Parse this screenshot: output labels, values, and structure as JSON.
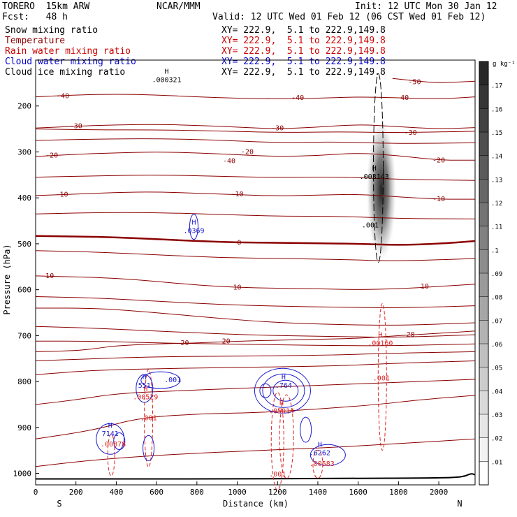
{
  "header": {
    "model": "TORERO  15km ARW",
    "center": "NCAR/MMM",
    "init": "Init: 12 UTC Mon 30 Jan 12",
    "fcst": "Fcst:   48 h",
    "valid": "Valid: 12 UTC Wed 01 Feb 12 (06 CST Wed 01 Feb 12)"
  },
  "legend": [
    {
      "label": "Snow mixing ratio",
      "xy": "XY= 222.9,  5.1 to 222.9,149.8",
      "color": "#000000"
    },
    {
      "label": "Temperature",
      "xy": "XY= 222.9,  5.1 to 222.9,149.8",
      "color": "#8b0000"
    },
    {
      "label": "Rain water mixing ratio",
      "xy": "XY= 222.9,  5.1 to 222.9,149.8",
      "color": "#cc0000"
    },
    {
      "label": "Cloud water mixing ratio",
      "xy": "XY= 222.9,  5.1 to 222.9,149.8",
      "color": "#0000cc"
    },
    {
      "label": "Cloud ice mixing ratio",
      "xy": "XY= 222.9,  5.1 to 222.9,149.8",
      "color": "#000000"
    }
  ],
  "colors": {
    "temperature": "#8b0000",
    "rain": "#dd2222",
    "cloudwater": "#1a1acc",
    "ice": "#000000",
    "ground": "#000000"
  },
  "chart_data": {
    "type": "cross-section",
    "xlabel": "Distance (km)",
    "ylabel": "Pressure (hPa)",
    "xlim": [
      0,
      2180
    ],
    "ylim": [
      1025,
      100
    ],
    "x_ticks": [
      0,
      200,
      400,
      600,
      800,
      1000,
      1200,
      1400,
      1600,
      1800,
      2000
    ],
    "y_ticks": [
      200,
      300,
      400,
      500,
      600,
      700,
      800,
      900,
      1000
    ],
    "endpoints": {
      "left": "S",
      "right": "N"
    },
    "colorbar": {
      "units": "g kg⁻¹",
      "ticks": [
        ".01",
        ".02",
        ".03",
        ".04",
        ".05",
        ".06",
        ".07",
        ".08",
        ".09",
        ".1",
        ".11",
        ".12",
        ".13",
        ".14",
        ".15",
        ".16",
        ".17"
      ]
    },
    "temperature_contours": [
      {
        "value": -50,
        "label": "-50",
        "points": [
          [
            1770,
            140
          ],
          [
            1900,
            146
          ],
          [
            2000,
            150
          ],
          [
            2180,
            146
          ]
        ],
        "label_at": [
          1880,
          148
        ]
      },
      {
        "value": -40,
        "label": "-40",
        "points": [
          [
            0,
            180
          ],
          [
            200,
            176
          ],
          [
            400,
            174
          ],
          [
            600,
            176
          ],
          [
            800,
            180
          ],
          [
            1000,
            183
          ],
          [
            1200,
            185
          ],
          [
            1400,
            183
          ],
          [
            1600,
            180
          ],
          [
            1800,
            182
          ],
          [
            2000,
            185
          ],
          [
            2180,
            180
          ]
        ],
        "label_at": [
          135,
          178
        ]
      },
      {
        "value": -30,
        "label": "-30",
        "points": [
          [
            0,
            248
          ],
          [
            200,
            244
          ],
          [
            400,
            241
          ],
          [
            600,
            240
          ],
          [
            800,
            242
          ],
          [
            1000,
            246
          ],
          [
            1200,
            250
          ],
          [
            1400,
            246
          ],
          [
            1600,
            240
          ],
          [
            1800,
            245
          ],
          [
            2000,
            250
          ],
          [
            2180,
            247
          ]
        ],
        "label_at": [
          200,
          244
        ]
      },
      {
        "value": -20,
        "label": "-20",
        "points": [
          [
            0,
            310
          ],
          [
            200,
            305
          ],
          [
            400,
            302
          ],
          [
            600,
            300
          ],
          [
            800,
            302
          ],
          [
            1000,
            306
          ],
          [
            1200,
            310
          ],
          [
            1400,
            308
          ],
          [
            1600,
            302
          ],
          [
            1800,
            308
          ],
          [
            2000,
            318
          ],
          [
            2180,
            318
          ]
        ],
        "label_at": [
          80,
          308
        ]
      },
      {
        "value": -10,
        "label": "-10",
        "points": [
          [
            0,
            395
          ],
          [
            200,
            392
          ],
          [
            400,
            388
          ],
          [
            600,
            387
          ],
          [
            800,
            390
          ],
          [
            1000,
            393
          ],
          [
            1200,
            396
          ],
          [
            1400,
            394
          ],
          [
            1600,
            392
          ],
          [
            1800,
            398
          ],
          [
            2000,
            403
          ],
          [
            2180,
            403
          ]
        ],
        "label_at": [
          130,
          393
        ]
      },
      {
        "value": 0,
        "label": "0",
        "points": [
          [
            0,
            483
          ],
          [
            200,
            484
          ],
          [
            400,
            486
          ],
          [
            600,
            490
          ],
          [
            800,
            494
          ],
          [
            1000,
            497
          ],
          [
            1200,
            498
          ],
          [
            1400,
            499
          ],
          [
            1600,
            500
          ],
          [
            1800,
            503
          ],
          [
            2000,
            500
          ],
          [
            2180,
            494
          ]
        ],
        "label_at": [
          1010,
          498
        ]
      },
      {
        "value": 10,
        "label": "10",
        "points": [
          [
            0,
            570
          ],
          [
            200,
            572
          ],
          [
            400,
            575
          ],
          [
            600,
            582
          ],
          [
            800,
            590
          ],
          [
            1000,
            595
          ],
          [
            1200,
            597
          ],
          [
            1400,
            598
          ],
          [
            1600,
            600
          ],
          [
            1800,
            598
          ],
          [
            2000,
            593
          ],
          [
            2180,
            588
          ]
        ],
        "label_at": [
          70,
          570
        ]
      },
      {
        "value": 20,
        "label": "20",
        "points": [
          [
            0,
            735
          ],
          [
            200,
            733
          ],
          [
            300,
            728
          ],
          [
            400,
            722
          ],
          [
            600,
            718
          ],
          [
            800,
            716
          ],
          [
            1000,
            712
          ],
          [
            1200,
            710
          ],
          [
            1400,
            708
          ],
          [
            1600,
            706
          ],
          [
            1800,
            700
          ],
          [
            2000,
            695
          ],
          [
            2180,
            690
          ]
        ],
        "label_at": [
          1860,
          698
        ]
      }
    ],
    "temperature_extra_lines": [
      {
        "points": [
          [
            0,
            250
          ],
          [
            300,
            252
          ],
          [
            600,
            252
          ],
          [
            900,
            254
          ],
          [
            1200,
            258
          ],
          [
            1500,
            256
          ],
          [
            1800,
            258
          ],
          [
            2180,
            255
          ]
        ]
      },
      {
        "points": [
          [
            0,
            275
          ],
          [
            300,
            272
          ],
          [
            600,
            271
          ],
          [
            900,
            274
          ],
          [
            1200,
            280
          ],
          [
            1500,
            278
          ],
          [
            1800,
            282
          ],
          [
            2180,
            280
          ]
        ]
      },
      {
        "points": [
          [
            0,
            355
          ],
          [
            300,
            352
          ],
          [
            600,
            350
          ],
          [
            900,
            353
          ],
          [
            1200,
            356
          ],
          [
            1500,
            354
          ],
          [
            1800,
            360
          ],
          [
            2180,
            362
          ]
        ]
      },
      {
        "points": [
          [
            0,
            435
          ],
          [
            300,
            432
          ],
          [
            600,
            432
          ],
          [
            900,
            436
          ],
          [
            1200,
            440
          ],
          [
            1500,
            440
          ],
          [
            1800,
            445
          ],
          [
            2180,
            446
          ]
        ]
      },
      {
        "points": [
          [
            0,
            515
          ],
          [
            300,
            518
          ],
          [
            600,
            524
          ],
          [
            900,
            530
          ],
          [
            1200,
            532
          ],
          [
            1500,
            534
          ],
          [
            1800,
            538
          ],
          [
            2180,
            532
          ]
        ]
      },
      {
        "points": [
          [
            0,
            615
          ],
          [
            300,
            618
          ],
          [
            600,
            625
          ],
          [
            900,
            632
          ],
          [
            1200,
            636
          ],
          [
            1500,
            638
          ],
          [
            1800,
            640
          ],
          [
            2180,
            635
          ]
        ]
      },
      {
        "points": [
          [
            0,
            640
          ],
          [
            300,
            640
          ],
          [
            600,
            650
          ],
          [
            900,
            662
          ],
          [
            1200,
            672
          ],
          [
            1500,
            676
          ],
          [
            1800,
            678
          ],
          [
            2180,
            672
          ]
        ]
      },
      {
        "points": [
          [
            0,
            680
          ],
          [
            300,
            684
          ],
          [
            600,
            690
          ],
          [
            900,
            696
          ],
          [
            1200,
            700
          ],
          [
            1500,
            702
          ],
          [
            1800,
            704
          ],
          [
            2180,
            698
          ]
        ]
      },
      {
        "points": [
          [
            0,
            712
          ],
          [
            300,
            712
          ],
          [
            600,
            716
          ],
          [
            900,
            718
          ],
          [
            1200,
            720
          ],
          [
            1500,
            722
          ],
          [
            1800,
            722
          ],
          [
            2180,
            718
          ]
        ]
      },
      {
        "points": [
          [
            0,
            755
          ],
          [
            300,
            750
          ],
          [
            600,
            746
          ],
          [
            900,
            745
          ],
          [
            1200,
            744
          ],
          [
            1500,
            742
          ],
          [
            1800,
            738
          ],
          [
            2180,
            735
          ]
        ]
      },
      {
        "points": [
          [
            0,
            785
          ],
          [
            300,
            775
          ],
          [
            600,
            772
          ],
          [
            900,
            770
          ],
          [
            1200,
            768
          ],
          [
            1500,
            766
          ],
          [
            1800,
            760
          ],
          [
            2180,
            755
          ]
        ]
      },
      {
        "points": [
          [
            0,
            850
          ],
          [
            200,
            840
          ],
          [
            400,
            826
          ],
          [
            700,
            820
          ],
          [
            1000,
            815
          ],
          [
            1300,
            810
          ],
          [
            1600,
            805
          ],
          [
            1900,
            800
          ],
          [
            2180,
            795
          ]
        ]
      },
      {
        "points": [
          [
            0,
            925
          ],
          [
            300,
            905
          ],
          [
            500,
            880
          ],
          [
            800,
            870
          ],
          [
            1100,
            868
          ],
          [
            1400,
            860
          ],
          [
            1700,
            850
          ],
          [
            1900,
            840
          ],
          [
            2180,
            830
          ]
        ]
      },
      {
        "points": [
          [
            0,
            985
          ],
          [
            300,
            970
          ],
          [
            700,
            958
          ],
          [
            1100,
            950
          ],
          [
            1400,
            945
          ],
          [
            1700,
            938
          ],
          [
            2180,
            925
          ]
        ]
      }
    ],
    "temperature_labels": [
      {
        "x": 960,
        "y": 320,
        "text": "-40"
      },
      {
        "x": 1300,
        "y": 182,
        "text": "-40"
      },
      {
        "x": 1820,
        "y": 182,
        "text": "-40"
      },
      {
        "x": 1860,
        "y": 258,
        "text": "-30"
      },
      {
        "x": 1200,
        "y": 248,
        "text": "-30"
      },
      {
        "x": 1050,
        "y": 300,
        "text": "-20"
      },
      {
        "x": 2000,
        "y": 318,
        "text": "-20"
      },
      {
        "x": 1000,
        "y": 392,
        "text": "-10"
      },
      {
        "x": 2000,
        "y": 403,
        "text": "-10"
      },
      {
        "x": 1000,
        "y": 595,
        "text": "10"
      },
      {
        "x": 1930,
        "y": 593,
        "text": "10"
      },
      {
        "x": 740,
        "y": 716,
        "text": "20"
      },
      {
        "x": 945,
        "y": 712,
        "text": "20"
      }
    ],
    "highs": [
      {
        "x": 785,
        "y": 463,
        "label": "H",
        "value": ".0369",
        "color": "cloudwater"
      },
      {
        "x": 650,
        "y": 134,
        "label": "H",
        "value": ".000321",
        "color": "ice"
      },
      {
        "x": 1680,
        "y": 345,
        "label": "H",
        "value": ".003143",
        "color": "ice"
      },
      {
        "x": 1710,
        "y": 708,
        "label": "H",
        "value": ".00160",
        "color": "rain"
      },
      {
        "x": 545,
        "y": 825,
        "label": "H",
        "value": ".00529",
        "color": "rain"
      },
      {
        "x": 540,
        "y": 800,
        "label": "H",
        "value": "551",
        "color": "cloudwater"
      },
      {
        "x": 370,
        "y": 905,
        "label": "H",
        "value": "7141",
        "color": "cloudwater"
      },
      {
        "x": 385,
        "y": 928,
        "label": "",
        "value": ".00878",
        "color": "rain"
      },
      {
        "x": 1230,
        "y": 800,
        "label": "H",
        "value": ".764",
        "color": "cloudwater"
      },
      {
        "x": 1220,
        "y": 855,
        "label": "H",
        "value": ".05014",
        "color": "rain"
      },
      {
        "x": 1410,
        "y": 947,
        "label": "H",
        "value": ".6262",
        "color": "cloudwater"
      },
      {
        "x": 1420,
        "y": 970,
        "label": "",
        "value": ".00583",
        "color": "rain"
      }
    ],
    "contour_labels": [
      {
        "x": 680,
        "y": 797,
        "text": ".001",
        "color": "cloudwater"
      },
      {
        "x": 1660,
        "y": 460,
        "text": ".001",
        "color": "ice"
      },
      {
        "x": 1715,
        "y": 793,
        "text": ".001",
        "color": "rain"
      },
      {
        "x": 560,
        "y": 880,
        "text": ".001",
        "color": "rain"
      },
      {
        "x": 1200,
        "y": 1002,
        "text": ".001",
        "color": "rain"
      }
    ]
  }
}
